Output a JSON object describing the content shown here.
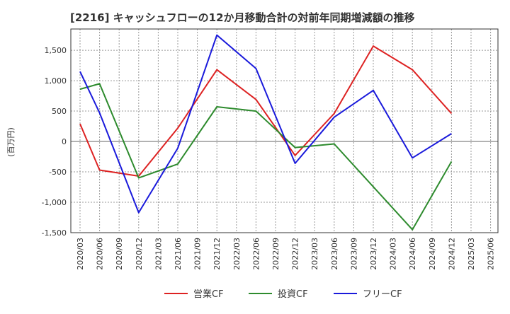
{
  "chart_data": {
    "type": "line",
    "title": "[2216]  キャッシュフローの12か月移動合計の対前年同期増減額の推移",
    "ylabel": "(百万円)",
    "ylim": [
      -1500,
      1850
    ],
    "yticks": [
      -1500,
      -1000,
      -500,
      0,
      500,
      1000,
      1500
    ],
    "ytick_labels": [
      "-1,500",
      "-1,000",
      "-500",
      "0",
      "500",
      "1,000",
      "1,500"
    ],
    "categories": [
      "2020/03",
      "2020/06",
      "2020/09",
      "2020/12",
      "2021/03",
      "2021/06",
      "2021/09",
      "2021/12",
      "2022/03",
      "2022/06",
      "2022/09",
      "2022/12",
      "2023/03",
      "2023/06",
      "2023/09",
      "2023/12",
      "2024/03",
      "2024/06",
      "2024/09",
      "2024/12",
      "2025/03",
      "2025/06"
    ],
    "grid": true,
    "legend_position": "bottom",
    "series": [
      {
        "name": "営業CF",
        "color": "#dd2222",
        "values": [
          290,
          -470,
          null,
          -570,
          null,
          220,
          null,
          1180,
          null,
          690,
          null,
          -230,
          null,
          460,
          null,
          1570,
          null,
          1180,
          null,
          460,
          null,
          null
        ]
      },
      {
        "name": "投資CF",
        "color": "#2e8b2e",
        "values": [
          860,
          950,
          null,
          -600,
          null,
          -370,
          null,
          570,
          null,
          500,
          null,
          -100,
          null,
          -40,
          null,
          null,
          null,
          -1450,
          null,
          -330,
          null,
          null
        ]
      },
      {
        "name": "フリーCF",
        "color": "#1a1adb",
        "values": [
          1150,
          470,
          null,
          -1170,
          null,
          -110,
          null,
          1750,
          null,
          1200,
          null,
          -360,
          null,
          400,
          null,
          840,
          null,
          -270,
          null,
          130,
          null,
          null
        ]
      }
    ]
  }
}
